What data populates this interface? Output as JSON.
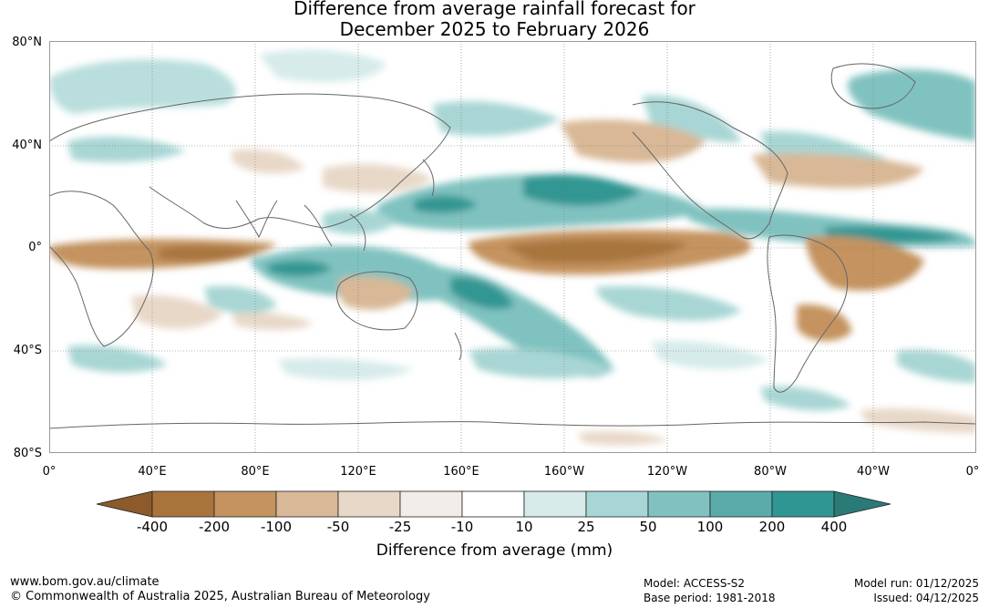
{
  "title_line1": "Difference from average rainfall forecast for",
  "title_line2": "December 2025 to February 2026",
  "lat_labels": [
    "80°N",
    "40°N",
    "0°",
    "40°S",
    "80°S"
  ],
  "lon_labels": [
    "0°",
    "40°E",
    "80°E",
    "120°E",
    "160°E",
    "160°W",
    "120°W",
    "80°W",
    "40°W",
    "0°"
  ],
  "colorbar": {
    "title": "Difference from average (mm)",
    "ticks": [
      "-400",
      "-200",
      "-100",
      "-50",
      "-25",
      "-10",
      "10",
      "25",
      "50",
      "100",
      "200",
      "400"
    ],
    "colors": [
      "#8c5a2b",
      "#a8743c",
      "#c4935f",
      "#d8b896",
      "#e8d8c8",
      "#f2ede8",
      "#ffffff",
      "#d6ebea",
      "#a8d6d4",
      "#80c2c0",
      "#5aabaa",
      "#309693",
      "#2a7a78"
    ]
  },
  "footer": {
    "url": "www.bom.gov.au/climate",
    "copyright": "© Commonwealth of Australia 2025, Australian Bureau of Meteorology",
    "model": "Model: ACCESS-S2",
    "base_period": "Base period: 1981-2018",
    "model_run": "Model run: 01/12/2025",
    "issued": "Issued: 04/12/2025"
  }
}
